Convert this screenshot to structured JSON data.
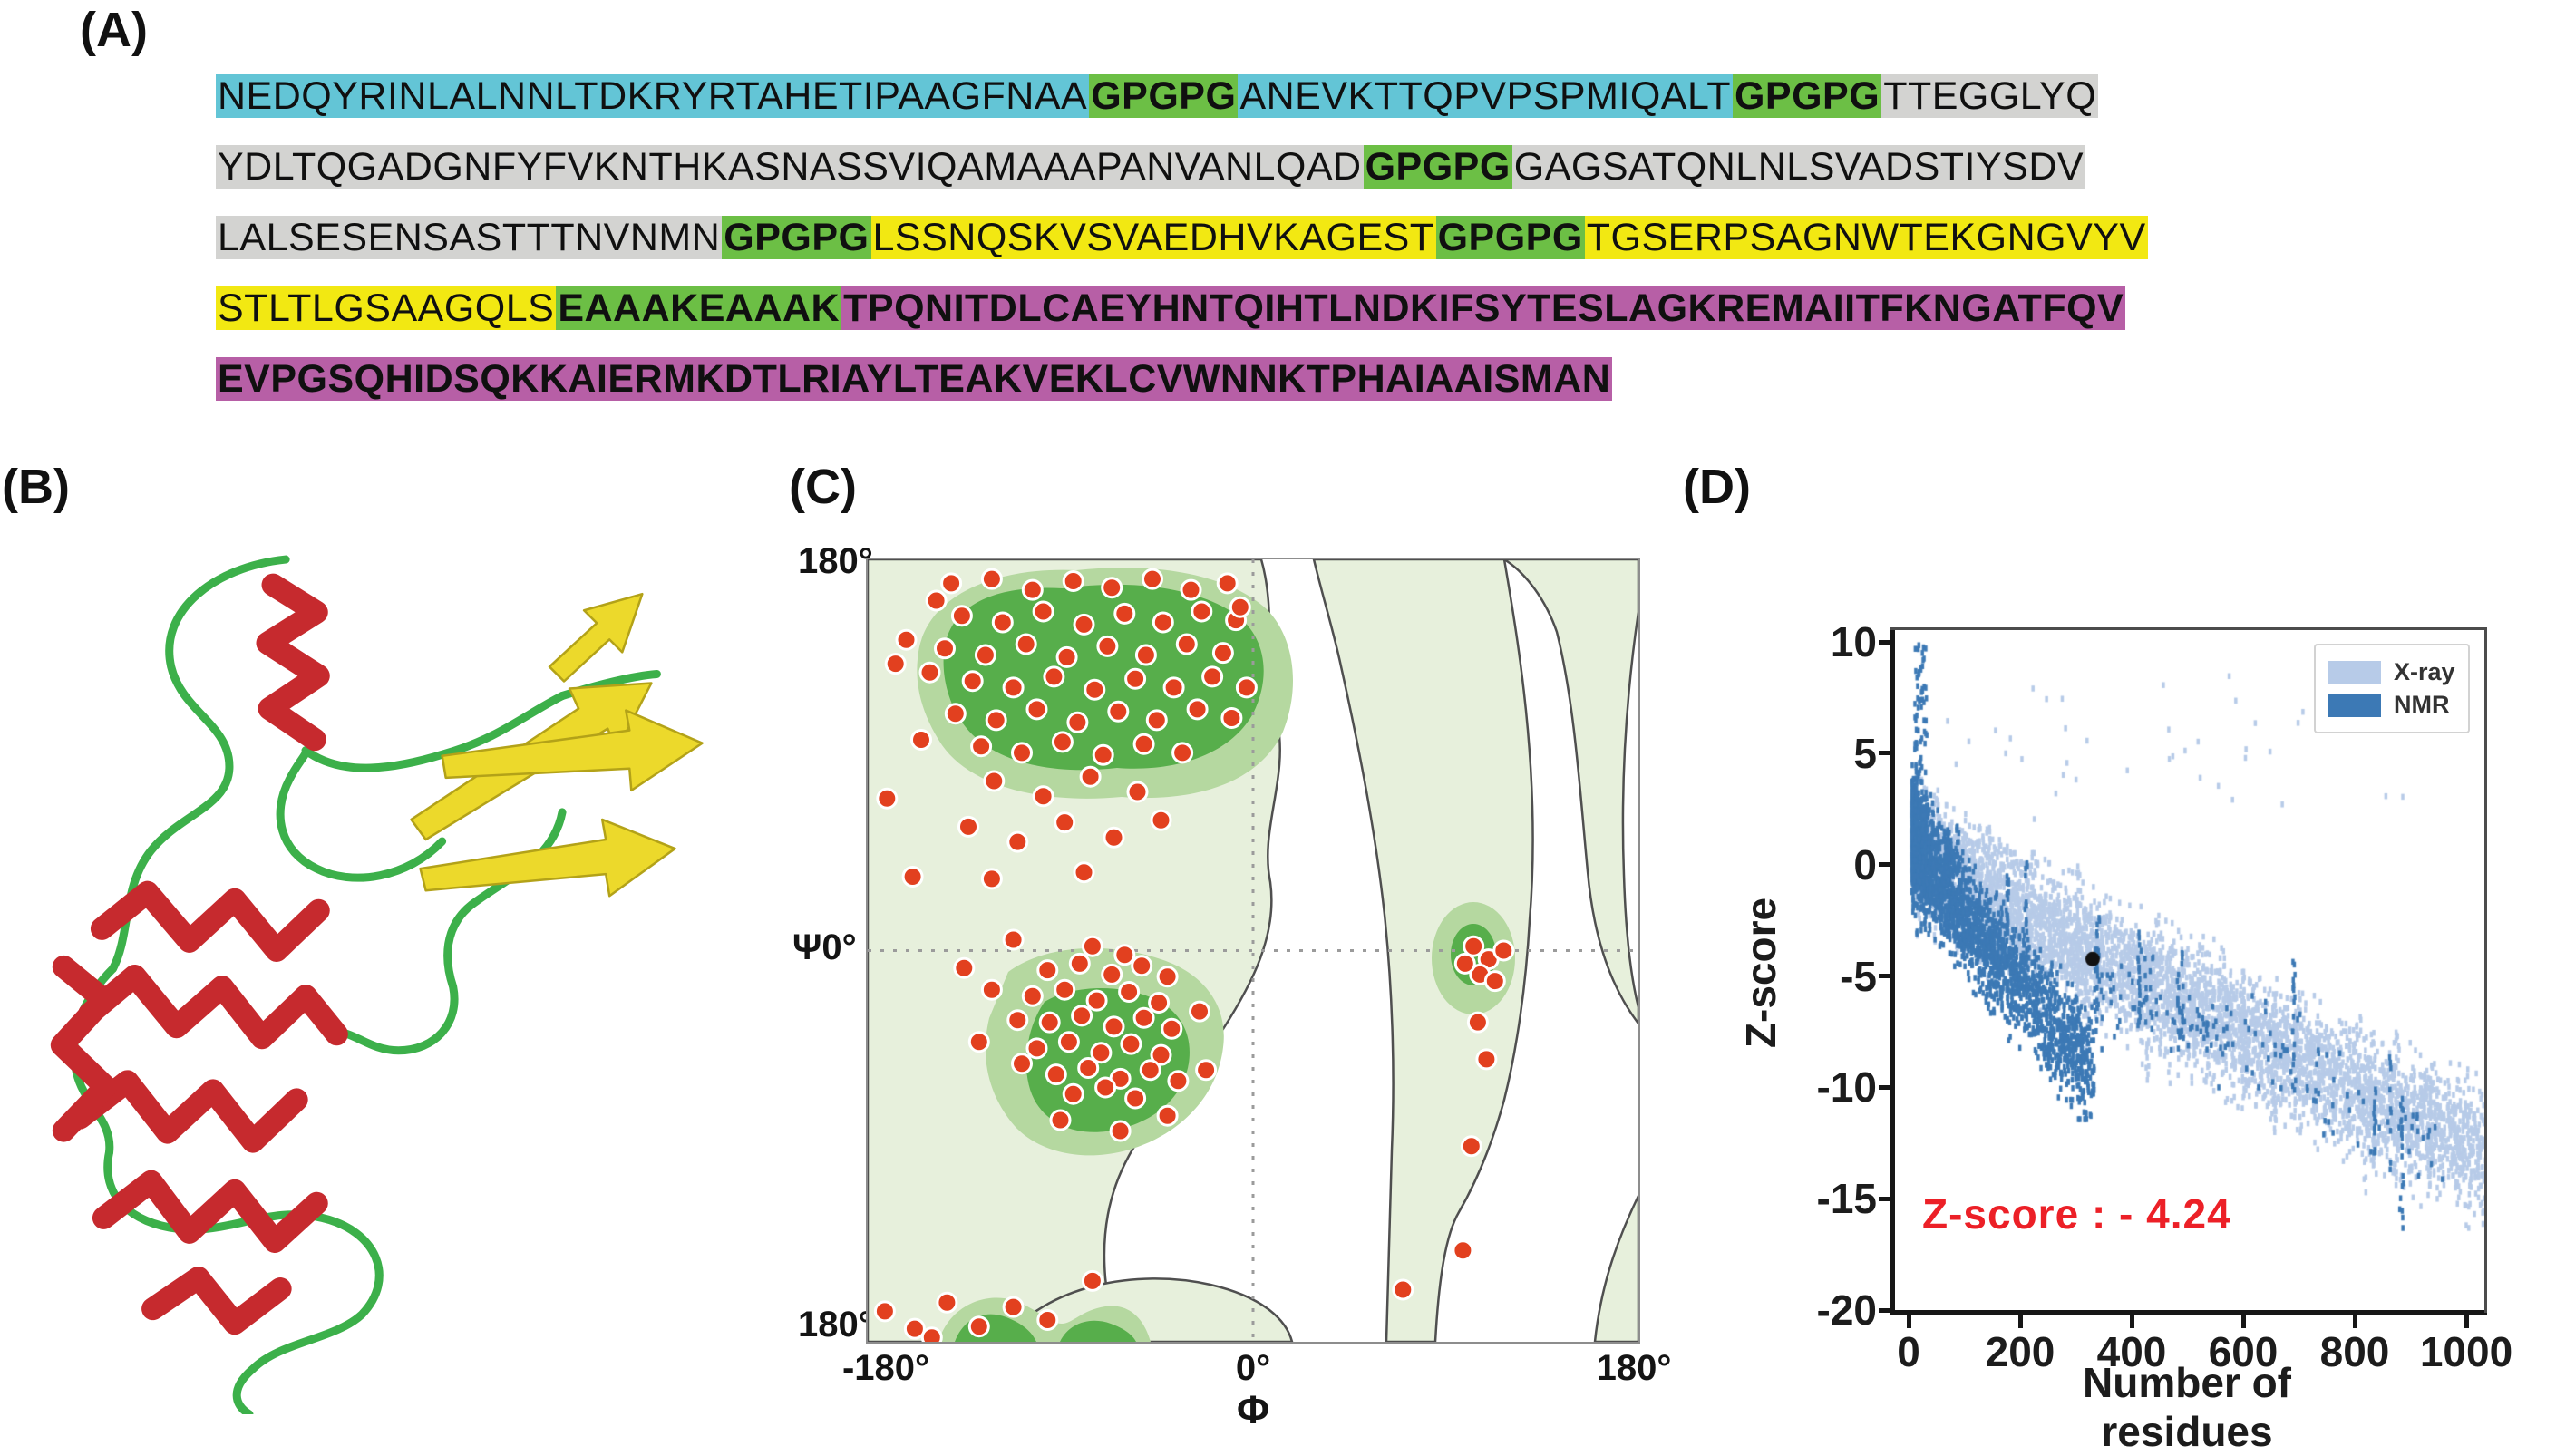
{
  "figure": {
    "panel_labels": {
      "a": "(A)",
      "b": "(B)",
      "c": "(C)",
      "d": "(D)"
    }
  },
  "palette": {
    "cyan": "#63c5d6",
    "green": "#6cbf45",
    "gray": "#d3d3d1",
    "yellow": "#f2e812",
    "magenta": "#b75fa6",
    "dot_red": "#e2401f",
    "contour_pale": "#e7f0dc",
    "contour_mid": "#b5d8a0",
    "contour_dark": "#57ae4b",
    "xray_blue": "#b7cbe8",
    "nmr_blue": "#3c79b5",
    "annotation_red": "#ec2027"
  },
  "sequence": {
    "lines": [
      [
        {
          "t": "NEDQYRINLALNNLTDKRYRTAHETIPAAGFNAA",
          "c": "cyan",
          "b": false
        },
        {
          "t": "GPGPG",
          "c": "green",
          "b": true
        },
        {
          "t": "ANEVKTTQPVPSPMIQALT",
          "c": "cyan",
          "b": false
        },
        {
          "t": "GPGPG",
          "c": "green",
          "b": true
        },
        {
          "t": "TTEGGLYQ",
          "c": "gray",
          "b": false
        }
      ],
      [
        {
          "t": "YDLTQGADGNFYFVKNTHKASNASSVIQAMAAAPANVANLQAD",
          "c": "gray",
          "b": false
        },
        {
          "t": "GPGPG",
          "c": "green",
          "b": true
        },
        {
          "t": "GAGSATQNLNLSVADSTIYSDV",
          "c": "gray",
          "b": false
        }
      ],
      [
        {
          "t": "LALSESENSASTTTNVNMN",
          "c": "gray",
          "b": false
        },
        {
          "t": "GPGPG",
          "c": "green",
          "b": true
        },
        {
          "t": "LSSNQSKVSVAEDHVKAGEST",
          "c": "yellow",
          "b": false
        },
        {
          "t": "GPGPG",
          "c": "green",
          "b": true
        },
        {
          "t": "TGSERPSAGNWTEKGNGVYV",
          "c": "yellow",
          "b": false
        }
      ],
      [
        {
          "t": "STLTLGSAAGQLS",
          "c": "yellow",
          "b": false
        },
        {
          "t": "EAAAKEAAAK",
          "c": "green",
          "b": true
        },
        {
          "t": "TPQNITDLCAEYHNTQIHTLNDKIFSYTESLAGKREMAIITFKNGATFQV",
          "c": "magenta",
          "b": true
        }
      ],
      [
        {
          "t": "EVPGSQHIDSQKKAIERMKDTLRIAYLTEAKVEKLCVWNNKTPHAIAAISMAN",
          "c": "magenta",
          "b": true
        }
      ]
    ]
  },
  "chart_data": [
    {
      "type": "scatter",
      "name": "ramachandran-plot",
      "xlabel": "Φ",
      "ylabel": "Ψ",
      "xlim": [
        -180,
        180
      ],
      "ylim": [
        -180,
        180
      ],
      "grid": "dashed crosshair at 0,0",
      "axis_labels": {
        "y_top": "180°",
        "y_mid": "Ψ0°",
        "y_bottom": "180°",
        "x_left": "-180°",
        "x_mid": "0°",
        "x_right": "180°",
        "x_symbol": "Φ"
      },
      "points": [
        [
          -141,
          169
        ],
        [
          -122,
          171
        ],
        [
          -103,
          166
        ],
        [
          -84,
          170
        ],
        [
          -66,
          167
        ],
        [
          -47,
          171
        ],
        [
          -29,
          166
        ],
        [
          -12,
          169
        ],
        [
          -136,
          154
        ],
        [
          -117,
          151
        ],
        [
          -98,
          156
        ],
        [
          -79,
          150
        ],
        [
          -60,
          155
        ],
        [
          -42,
          151
        ],
        [
          -24,
          156
        ],
        [
          -8,
          152
        ],
        [
          -144,
          139
        ],
        [
          -125,
          136
        ],
        [
          -106,
          141
        ],
        [
          -87,
          135
        ],
        [
          -68,
          140
        ],
        [
          -50,
          136
        ],
        [
          -31,
          141
        ],
        [
          -14,
          137
        ],
        [
          -131,
          124
        ],
        [
          -112,
          121
        ],
        [
          -93,
          126
        ],
        [
          -74,
          120
        ],
        [
          -55,
          125
        ],
        [
          -37,
          121
        ],
        [
          -19,
          126
        ],
        [
          -139,
          109
        ],
        [
          -120,
          106
        ],
        [
          -101,
          111
        ],
        [
          -82,
          105
        ],
        [
          -63,
          110
        ],
        [
          -45,
          106
        ],
        [
          -26,
          111
        ],
        [
          -10,
          107
        ],
        [
          -127,
          94
        ],
        [
          -108,
          91
        ],
        [
          -89,
          96
        ],
        [
          -70,
          90
        ],
        [
          -51,
          95
        ],
        [
          -33,
          91
        ],
        [
          -148,
          161
        ],
        [
          -151,
          128
        ],
        [
          -6,
          158
        ],
        [
          -3,
          121
        ],
        [
          -155,
          97
        ],
        [
          -162,
          143
        ],
        [
          -121,
          78
        ],
        [
          -98,
          71
        ],
        [
          -76,
          80
        ],
        [
          -54,
          73
        ],
        [
          -133,
          57
        ],
        [
          -110,
          50
        ],
        [
          -88,
          59
        ],
        [
          -65,
          52
        ],
        [
          -43,
          60
        ],
        [
          -122,
          33
        ],
        [
          -79,
          36
        ],
        [
          -96,
          -9
        ],
        [
          -81,
          -6
        ],
        [
          -66,
          -11
        ],
        [
          -52,
          -7
        ],
        [
          -103,
          -21
        ],
        [
          -88,
          -18
        ],
        [
          -73,
          -23
        ],
        [
          -58,
          -19
        ],
        [
          -44,
          -24
        ],
        [
          -95,
          -33
        ],
        [
          -80,
          -30
        ],
        [
          -65,
          -35
        ],
        [
          -51,
          -31
        ],
        [
          -38,
          -36
        ],
        [
          -101,
          -45
        ],
        [
          -86,
          -42
        ],
        [
          -71,
          -47
        ],
        [
          -57,
          -43
        ],
        [
          -43,
          -48
        ],
        [
          -92,
          -57
        ],
        [
          -77,
          -54
        ],
        [
          -62,
          -59
        ],
        [
          -48,
          -55
        ],
        [
          -84,
          -66
        ],
        [
          -69,
          -63
        ],
        [
          -55,
          -68
        ],
        [
          -110,
          -32
        ],
        [
          -108,
          -52
        ],
        [
          -35,
          -60
        ],
        [
          -40,
          -12
        ],
        [
          -75,
          2
        ],
        [
          -60,
          -2
        ],
        [
          -122,
          -18
        ],
        [
          -128,
          -42
        ],
        [
          -25,
          -28
        ],
        [
          -22,
          -55
        ],
        [
          -90,
          -78
        ],
        [
          -62,
          -83
        ],
        [
          -40,
          -76
        ],
        [
          -112,
          5
        ],
        [
          -135,
          -8
        ],
        [
          -167,
          132
        ],
        [
          -171,
          70
        ],
        [
          -159,
          34
        ],
        [
          -172,
          -166
        ],
        [
          -158,
          -174
        ],
        [
          -143,
          -162
        ],
        [
          -128,
          -173
        ],
        [
          -112,
          -164
        ],
        [
          -150,
          -178
        ],
        [
          -96,
          -170
        ],
        [
          -75,
          -152
        ],
        [
          103,
          2
        ],
        [
          110,
          -4
        ],
        [
          117,
          0
        ],
        [
          106,
          -11
        ],
        [
          99,
          -6
        ],
        [
          113,
          -14
        ],
        [
          105,
          -33
        ],
        [
          109,
          -50
        ],
        [
          102,
          -90
        ],
        [
          98,
          -138
        ],
        [
          70,
          -156
        ]
      ]
    },
    {
      "type": "scatter",
      "name": "prosa-zscore-plot",
      "title": "",
      "xlabel": "Number of residues",
      "ylabel": "Z-score",
      "xlim": [
        0,
        1000
      ],
      "ylim": [
        -20,
        10
      ],
      "xticks": [
        0,
        200,
        400,
        600,
        800,
        1000
      ],
      "yticks": [
        10,
        5,
        0,
        -5,
        -10,
        -15,
        -20
      ],
      "legend": [
        "X-ray",
        "NMR"
      ],
      "legend_position": "top-right",
      "annotation": "Z-score : - 4.24",
      "highlight_point": {
        "x": 330,
        "z": -4.24
      },
      "series": [
        {
          "name": "X-ray",
          "color": "#b7cbe8",
          "n": 5200,
          "seed": 7,
          "x_min": 8,
          "x_max": 1035,
          "x_pow": 1.25,
          "trend_max": 1000,
          "y0": 1.0,
          "slope": -13.5,
          "y_pow": 0.9,
          "spread": 2.7,
          "y_clip": [
            -17.6,
            9.6
          ],
          "spike": {
            "x": [
              60,
              900
            ],
            "y": [
              2,
              9
            ],
            "n": 40
          },
          "streaks": 16,
          "streak_x": [
            150,
            1000
          ]
        },
        {
          "name": "NMR",
          "color": "#3c79b5",
          "n": 2700,
          "seed": 13,
          "x_min": 3,
          "x_max": 330,
          "x_pow": 2.0,
          "trend_max": 330,
          "y0": 1.8,
          "slope": -11,
          "y_pow": 0.85,
          "spread": 2.4,
          "y_clip": [
            -11.3,
            10.2
          ],
          "spike": {
            "x": [
              8,
              30
            ],
            "y": [
              -3,
              10
            ],
            "n": 140
          },
          "tail": {
            "n": 160,
            "x": [
              330,
              960
            ]
          },
          "streaks": 12,
          "streak_x": [
            40,
            900
          ]
        }
      ]
    }
  ]
}
